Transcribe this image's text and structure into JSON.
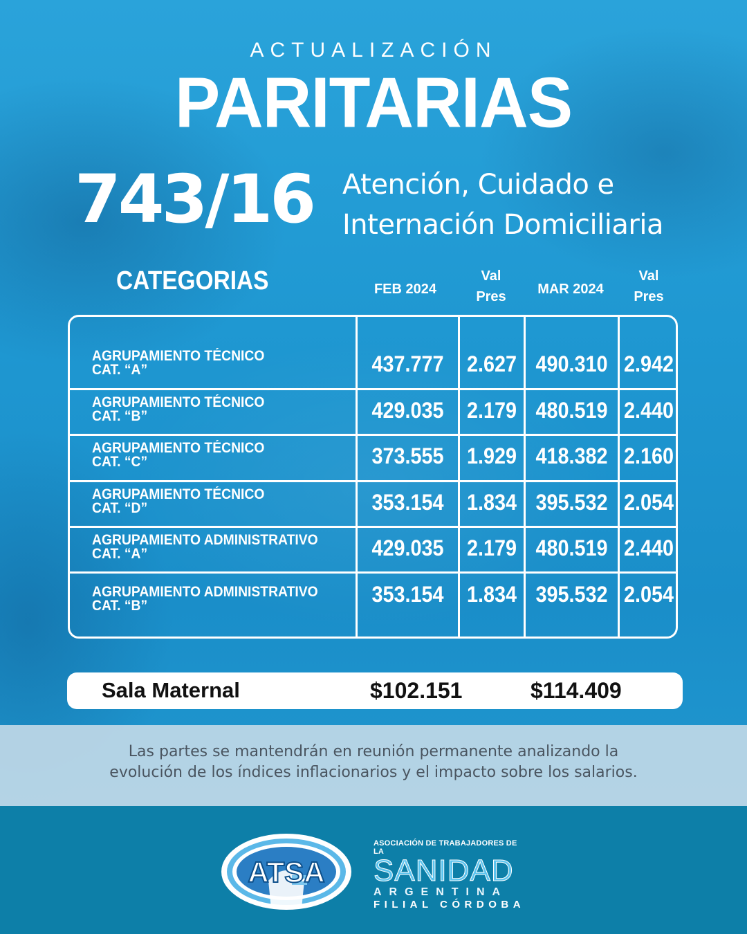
{
  "header": {
    "subtitle": "ACTUALIZACIÓN",
    "title": "PARITARIAS",
    "code": "743/16",
    "description_line1": "Atención, Cuidado e",
    "description_line2": "Internación Domiciliaria"
  },
  "table": {
    "category_header": "CATEGORIAS",
    "columns": {
      "feb": "FEB 2024",
      "val_pres_1_l1": "Val",
      "val_pres_1_l2": "Pres",
      "mar": "MAR 2024",
      "val_pres_2_l1": "Val",
      "val_pres_2_l2": "Pres"
    },
    "rows": [
      {
        "line1": "AGRUPAMIENTO TÉCNICO",
        "line2": "CAT. “A”",
        "feb": "437.777",
        "val1": "2.627",
        "mar": "490.310",
        "val2": "2.942"
      },
      {
        "line1": "AGRUPAMIENTO TÉCNICO",
        "line2": "CAT. “B”",
        "feb": "429.035",
        "val1": "2.179",
        "mar": "480.519",
        "val2": "2.440"
      },
      {
        "line1": "AGRUPAMIENTO TÉCNICO",
        "line2": "CAT. “C”",
        "feb": "373.555",
        "val1": "1.929",
        "mar": "418.382",
        "val2": "2.160"
      },
      {
        "line1": "AGRUPAMIENTO TÉCNICO",
        "line2": "CAT. “D”",
        "feb": "353.154",
        "val1": "1.834",
        "mar": "395.532",
        "val2": "2.054"
      },
      {
        "line1": "AGRUPAMIENTO ADMINISTRATIVO",
        "line2": "CAT. “A”",
        "feb": "429.035",
        "val1": "2.179",
        "mar": "480.519",
        "val2": "2.440"
      },
      {
        "line1": "AGRUPAMIENTO ADMINISTRATIVO",
        "line2": "CAT. “B”",
        "feb": "353.154",
        "val1": "1.834",
        "mar": "395.532",
        "val2": "2.054"
      }
    ]
  },
  "sala_maternal": {
    "label": "Sala Maternal",
    "feb": "$102.151",
    "mar": "$114.409"
  },
  "note": {
    "line1": "Las partes se mantendrán en reunión permanente analizando la",
    "line2": "evolución de los índices inflacionarios y el impacto sobre los salarios."
  },
  "footer": {
    "atsa_logo_text": "ATSA",
    "org_line1": "ASOCIACIÓN DE TRABAJADORES DE LA",
    "org_line2": "SANIDAD",
    "org_line3": "ARGENTINA",
    "org_line4": "FILIAL CÓRDOBA"
  },
  "colors": {
    "background": "#1e9bd4",
    "footer": "#0d7fa8",
    "note_band": "#c8dce8",
    "accent_light": "#5bc4ef"
  }
}
